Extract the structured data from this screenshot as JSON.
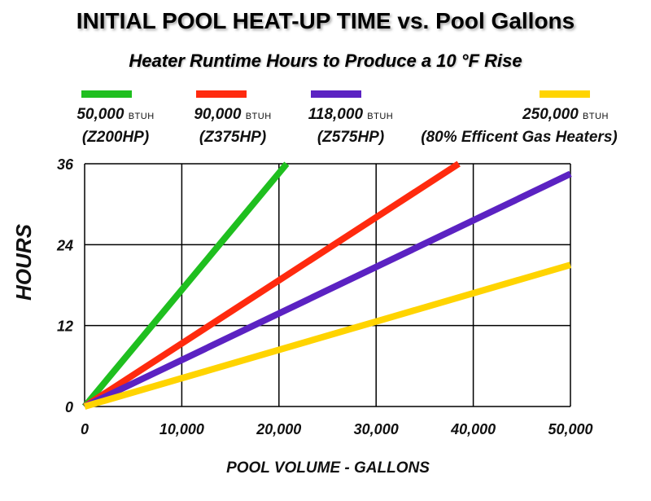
{
  "header": {
    "title": "INITIAL POOL HEAT-UP TIME  vs. Pool Gallons",
    "subtitle": "Heater Runtime Hours to Produce a 10 °F Rise"
  },
  "legend": [
    {
      "value": "50,000",
      "unit": "BTUH",
      "model": "(Z200HP)",
      "color": "#1fbf1f"
    },
    {
      "value": "90,000",
      "unit": "BTUH",
      "model": "(Z375HP)",
      "color": "#ff2a0e"
    },
    {
      "value": "118,000",
      "unit": "BTUH",
      "model": "(Z575HP)",
      "color": "#5b22c2"
    },
    {
      "value": "250,000",
      "unit": "BTUH",
      "model": "(80% Efficent Gas Heaters)",
      "color": "#ffd400"
    }
  ],
  "chart_data": {
    "type": "line",
    "title": "INITIAL POOL HEAT-UP TIME  vs. Pool Gallons",
    "subtitle": "Heater Runtime Hours to Produce a 10 °F Rise",
    "xlabel": "POOL VOLUME - GALLONS",
    "ylabel": "HOURS",
    "xlim": [
      0,
      50000
    ],
    "ylim": [
      0,
      36
    ],
    "xticks": [
      0,
      10000,
      20000,
      30000,
      40000,
      50000
    ],
    "xtick_labels": [
      "0",
      "10,000",
      "20,000",
      "30,000",
      "40,000",
      "50,000"
    ],
    "yticks": [
      0,
      12,
      24,
      36
    ],
    "ytick_labels": [
      "0",
      "12",
      "24",
      "36"
    ],
    "grid": true,
    "legend_position": "top",
    "series": [
      {
        "name": "50,000 BTUH (Z200HP)",
        "color": "#1fbf1f",
        "x": [
          0,
          20800
        ],
        "y": [
          0,
          36
        ]
      },
      {
        "name": "90,000 BTUH (Z375HP)",
        "color": "#ff2a0e",
        "x": [
          0,
          38500
        ],
        "y": [
          0,
          36
        ]
      },
      {
        "name": "118,000 BTUH (Z575HP)",
        "color": "#5b22c2",
        "x": [
          0,
          50000
        ],
        "y": [
          0,
          34.5
        ]
      },
      {
        "name": "250,000 BTUH (80% Efficent Gas Heaters)",
        "color": "#ffd400",
        "x": [
          0,
          50000
        ],
        "y": [
          0,
          21
        ]
      }
    ]
  }
}
